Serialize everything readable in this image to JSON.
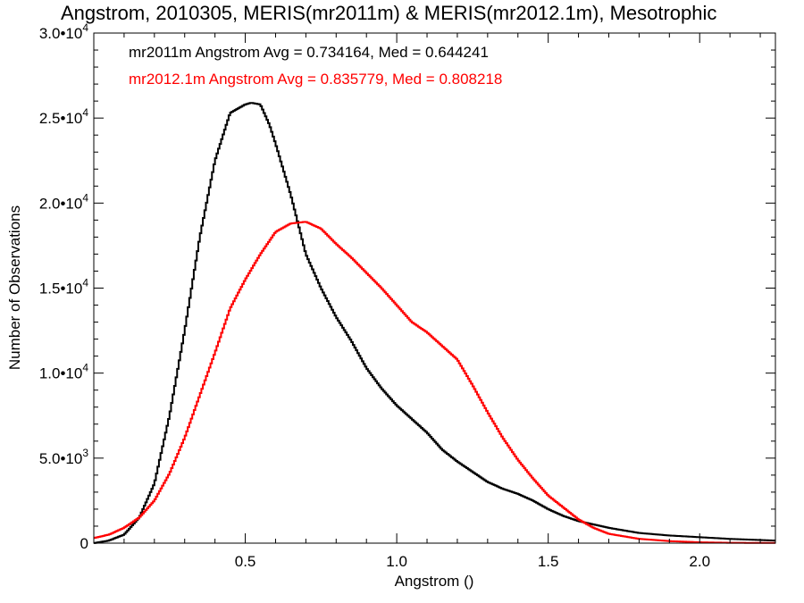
{
  "chart_data": {
    "type": "line",
    "title": "Angstrom, 2010305, MERIS(mr2011m) & MERIS(mr2012.1m), Mesotrophic",
    "xlabel": "Angstrom ()",
    "ylabel": "Number of Observations",
    "xlim": [
      0.0,
      2.25
    ],
    "ylim": [
      0,
      30000
    ],
    "x_ticks": [
      0.5,
      1.0,
      1.5,
      2.0
    ],
    "x_tick_labels": [
      "0.5",
      "1.0",
      "1.5",
      "2.0"
    ],
    "y_ticks": [
      0,
      5000,
      10000,
      15000,
      20000,
      25000,
      30000
    ],
    "y_tick_labels": [
      {
        "base": "0",
        "exp": ""
      },
      {
        "base": "5.0•10",
        "exp": "3"
      },
      {
        "base": "1.0•10",
        "exp": "4"
      },
      {
        "base": "1.5•10",
        "exp": "4"
      },
      {
        "base": "2.0•10",
        "exp": "4"
      },
      {
        "base": "2.5•10",
        "exp": "4"
      },
      {
        "base": "3.0•10",
        "exp": "4"
      }
    ],
    "grid": false,
    "legend_position": "top-left",
    "series": [
      {
        "name": "mr2011m",
        "color": "#000000",
        "annotation": "mr2011m Angstrom Avg = 0.734164, Med = 0.644241",
        "x": [
          0.0,
          0.05,
          0.1,
          0.15,
          0.2,
          0.25,
          0.3,
          0.35,
          0.4,
          0.45,
          0.5,
          0.52,
          0.55,
          0.58,
          0.6,
          0.65,
          0.7,
          0.75,
          0.8,
          0.85,
          0.9,
          0.95,
          1.0,
          1.05,
          1.1,
          1.15,
          1.2,
          1.25,
          1.3,
          1.35,
          1.4,
          1.45,
          1.5,
          1.55,
          1.6,
          1.7,
          1.8,
          1.9,
          2.0,
          2.1,
          2.25
        ],
        "y": [
          0,
          150,
          500,
          1500,
          3500,
          7500,
          12500,
          18000,
          22500,
          25300,
          25800,
          25900,
          25800,
          24600,
          23500,
          20500,
          17000,
          15000,
          13300,
          11900,
          10300,
          9100,
          8100,
          7300,
          6500,
          5500,
          4800,
          4200,
          3600,
          3200,
          2900,
          2500,
          2000,
          1600,
          1300,
          900,
          600,
          450,
          350,
          250,
          150
        ]
      },
      {
        "name": "mr2012.1m",
        "color": "#ff0000",
        "annotation": "mr2012.1m Angstrom Avg = 0.835779, Med = 0.808218",
        "x": [
          0.0,
          0.05,
          0.1,
          0.15,
          0.2,
          0.25,
          0.3,
          0.35,
          0.4,
          0.45,
          0.5,
          0.55,
          0.6,
          0.65,
          0.7,
          0.75,
          0.8,
          0.85,
          0.9,
          0.95,
          1.0,
          1.05,
          1.1,
          1.15,
          1.2,
          1.25,
          1.3,
          1.35,
          1.4,
          1.45,
          1.5,
          1.55,
          1.6,
          1.65,
          1.7,
          1.8,
          1.9,
          2.0,
          2.1,
          2.25
        ],
        "y": [
          300,
          500,
          900,
          1500,
          2500,
          4100,
          6200,
          8700,
          11200,
          13800,
          15500,
          17000,
          18300,
          18800,
          18900,
          18500,
          17600,
          16800,
          15900,
          15000,
          14000,
          13000,
          12400,
          11600,
          10800,
          9300,
          7700,
          6200,
          4900,
          3800,
          2800,
          2100,
          1400,
          900,
          550,
          250,
          120,
          50,
          20,
          10
        ]
      }
    ]
  }
}
